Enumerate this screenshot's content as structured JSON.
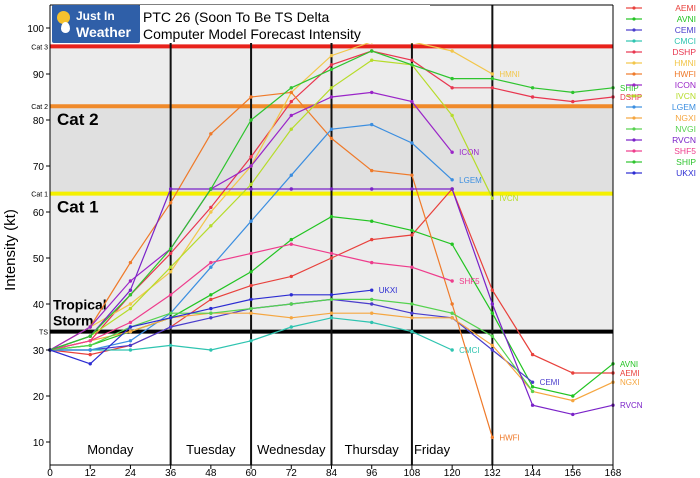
{
  "logo": {
    "line1": "Just In",
    "line2": "Weather"
  },
  "title": {
    "line1": "PTC 26 (Soon To Be TS Delta",
    "line2": "Computer Model Forecast    Intensity"
  },
  "chart_data": {
    "type": "line",
    "ylabel": "Intensity (kt)",
    "xlim": [
      0,
      168
    ],
    "ylim": [
      5,
      105
    ],
    "x_ticks": [
      0,
      12,
      24,
      36,
      48,
      60,
      72,
      84,
      96,
      108,
      120,
      132,
      144,
      156,
      168
    ],
    "y_ticks": [
      10,
      20,
      30,
      40,
      50,
      60,
      70,
      80,
      90,
      100
    ],
    "grid": false,
    "days": [
      {
        "label": "Monday",
        "x": 18
      },
      {
        "label": "Tuesday",
        "x": 48
      },
      {
        "label": "Wednesday",
        "x": 72
      },
      {
        "label": "Thursday",
        "x": 96
      },
      {
        "label": "Friday",
        "x": 114
      }
    ],
    "day_dividers": [
      36,
      60,
      84,
      108,
      132
    ],
    "categories": [
      {
        "short": "Cat 3",
        "name": "",
        "kt": 96,
        "color": "#e8221b"
      },
      {
        "short": "Cat 2",
        "name": "Cat 2",
        "kt": 83,
        "color": "#f08a2a"
      },
      {
        "short": "Cat 1",
        "name": "Cat 1",
        "kt": 64,
        "color": "#f4f000"
      },
      {
        "short": "TS",
        "name": "Tropical Storm",
        "kt": 34,
        "color": "#000000"
      }
    ],
    "series": [
      {
        "name": "AEMI",
        "color": "#e8413c",
        "x": [
          0,
          12,
          24,
          36,
          48,
          60,
          72,
          84,
          96,
          108,
          120,
          132,
          144,
          156,
          168
        ],
        "y": [
          30,
          29,
          31,
          35,
          41,
          44,
          46,
          50,
          54,
          55,
          65,
          43,
          29,
          25,
          25
        ],
        "end_label": "AEMI"
      },
      {
        "name": "AVNI",
        "color": "#22c422",
        "x": [
          0,
          12,
          24,
          36,
          48,
          60,
          72,
          84,
          96,
          108,
          120,
          132,
          144,
          156,
          168
        ],
        "y": [
          30,
          31,
          34,
          37,
          42,
          47,
          54,
          59,
          58,
          56,
          53,
          38,
          22,
          20,
          27
        ],
        "end_label": "AVNI"
      },
      {
        "name": "CEMI",
        "color": "#4a3dcc",
        "x": [
          0,
          12,
          24,
          36,
          48,
          60,
          72,
          84,
          96,
          108,
          120,
          132,
          144
        ],
        "y": [
          30,
          30,
          31,
          35,
          37,
          39,
          40,
          41,
          40,
          38,
          37,
          30,
          23
        ],
        "end_label": "CEMI"
      },
      {
        "name": "CMCI",
        "color": "#2ec4b0",
        "x": [
          0,
          12,
          24,
          36,
          48,
          60,
          72,
          84,
          96,
          108,
          120
        ],
        "y": [
          30,
          30,
          30,
          31,
          30,
          32,
          35,
          37,
          36,
          34,
          30
        ],
        "end_label": "CMCI"
      },
      {
        "name": "DSHP",
        "color": "#e8364f",
        "x": [
          0,
          12,
          24,
          36,
          48,
          60,
          72,
          84,
          96,
          108,
          120,
          132,
          144,
          156,
          168
        ],
        "y": [
          30,
          32,
          42,
          51,
          61,
          72,
          84,
          92,
          95,
          93,
          87,
          87,
          85,
          84,
          85
        ],
        "end_label": "DSHP"
      },
      {
        "name": "HMNI",
        "color": "#f2c64a",
        "x": [
          0,
          12,
          24,
          36,
          48,
          60,
          72,
          84,
          96,
          108,
          120,
          132
        ],
        "y": [
          30,
          35,
          40,
          47,
          60,
          70,
          86,
          94,
          97,
          97,
          95,
          90
        ],
        "end_label": "HMNI"
      },
      {
        "name": "HWFI",
        "color": "#ef7a2a",
        "x": [
          0,
          12,
          24,
          36,
          48,
          60,
          72,
          84,
          96,
          108,
          120,
          132
        ],
        "y": [
          30,
          35,
          49,
          62,
          77,
          85,
          86,
          76,
          69,
          68,
          40,
          11
        ],
        "end_label": "HWFI"
      },
      {
        "name": "ICON",
        "color": "#9a25c8",
        "x": [
          0,
          12,
          24,
          36,
          48,
          60,
          72,
          84,
          96,
          108,
          120
        ],
        "y": [
          30,
          35,
          45,
          52,
          65,
          70,
          81,
          85,
          86,
          84,
          73
        ],
        "end_label": "ICON"
      },
      {
        "name": "IVCN",
        "color": "#b6dc2a",
        "x": [
          0,
          12,
          24,
          36,
          48,
          60,
          72,
          84,
          96,
          108,
          120,
          132
        ],
        "y": [
          30,
          33,
          39,
          48,
          57,
          66,
          78,
          87,
          93,
          92,
          81,
          63
        ],
        "end_label": "IVCN"
      },
      {
        "name": "LGEM",
        "color": "#3b8ee0",
        "x": [
          0,
          12,
          24,
          36,
          48,
          60,
          72,
          84,
          96,
          108,
          120
        ],
        "y": [
          30,
          30,
          32,
          38,
          48,
          58,
          68,
          78,
          79,
          75,
          67
        ],
        "end_label": "LGEM"
      },
      {
        "name": "NGXI",
        "color": "#f5a640",
        "x": [
          0,
          12,
          24,
          36,
          48,
          60,
          72,
          84,
          96,
          108,
          120,
          132,
          144,
          156,
          168
        ],
        "y": [
          30,
          32,
          34,
          37,
          38,
          38,
          37,
          38,
          38,
          37,
          37,
          31,
          21,
          19,
          23
        ],
        "end_label": "NGXI"
      },
      {
        "name": "NVGI",
        "color": "#55d24e",
        "x": [
          0,
          12,
          24,
          36,
          48,
          60,
          72,
          84,
          96,
          108,
          120,
          132,
          144
        ],
        "y": [
          30,
          31,
          35,
          38,
          38,
          39,
          40,
          41,
          41,
          40,
          38,
          33,
          21
        ],
        "end_label": ""
      },
      {
        "name": "RVCN",
        "color": "#7a22c8",
        "x": [
          0,
          12,
          24,
          36,
          48,
          60,
          72,
          84,
          96,
          108,
          120,
          132,
          144,
          156,
          168
        ],
        "y": [
          30,
          33,
          43,
          65,
          65,
          65,
          65,
          65,
          65,
          65,
          65,
          40,
          18,
          16,
          18
        ],
        "end_label": "RVCN"
      },
      {
        "name": "SHF5",
        "color": "#ee3c8c",
        "x": [
          0,
          12,
          24,
          36,
          48,
          60,
          72,
          84,
          96,
          108,
          120
        ],
        "y": [
          30,
          32,
          36,
          42,
          49,
          51,
          53,
          51,
          49,
          48,
          45
        ],
        "end_label": "SHF5"
      },
      {
        "name": "SHIP",
        "color": "#2ec42e",
        "x": [
          0,
          12,
          24,
          36,
          48,
          60,
          72,
          84,
          96,
          108,
          120,
          132,
          144,
          156,
          168
        ],
        "y": [
          30,
          33,
          42,
          52,
          65,
          80,
          87,
          91,
          95,
          92,
          89,
          89,
          87,
          86,
          87
        ],
        "end_label": "SHIP"
      },
      {
        "name": "UKXI",
        "color": "#2c2cd2",
        "x": [
          0,
          12,
          24,
          36,
          48,
          60,
          72,
          84,
          96
        ],
        "y": [
          30,
          27,
          35,
          37,
          39,
          41,
          42,
          42,
          43
        ],
        "end_label": "UKXI"
      }
    ]
  }
}
